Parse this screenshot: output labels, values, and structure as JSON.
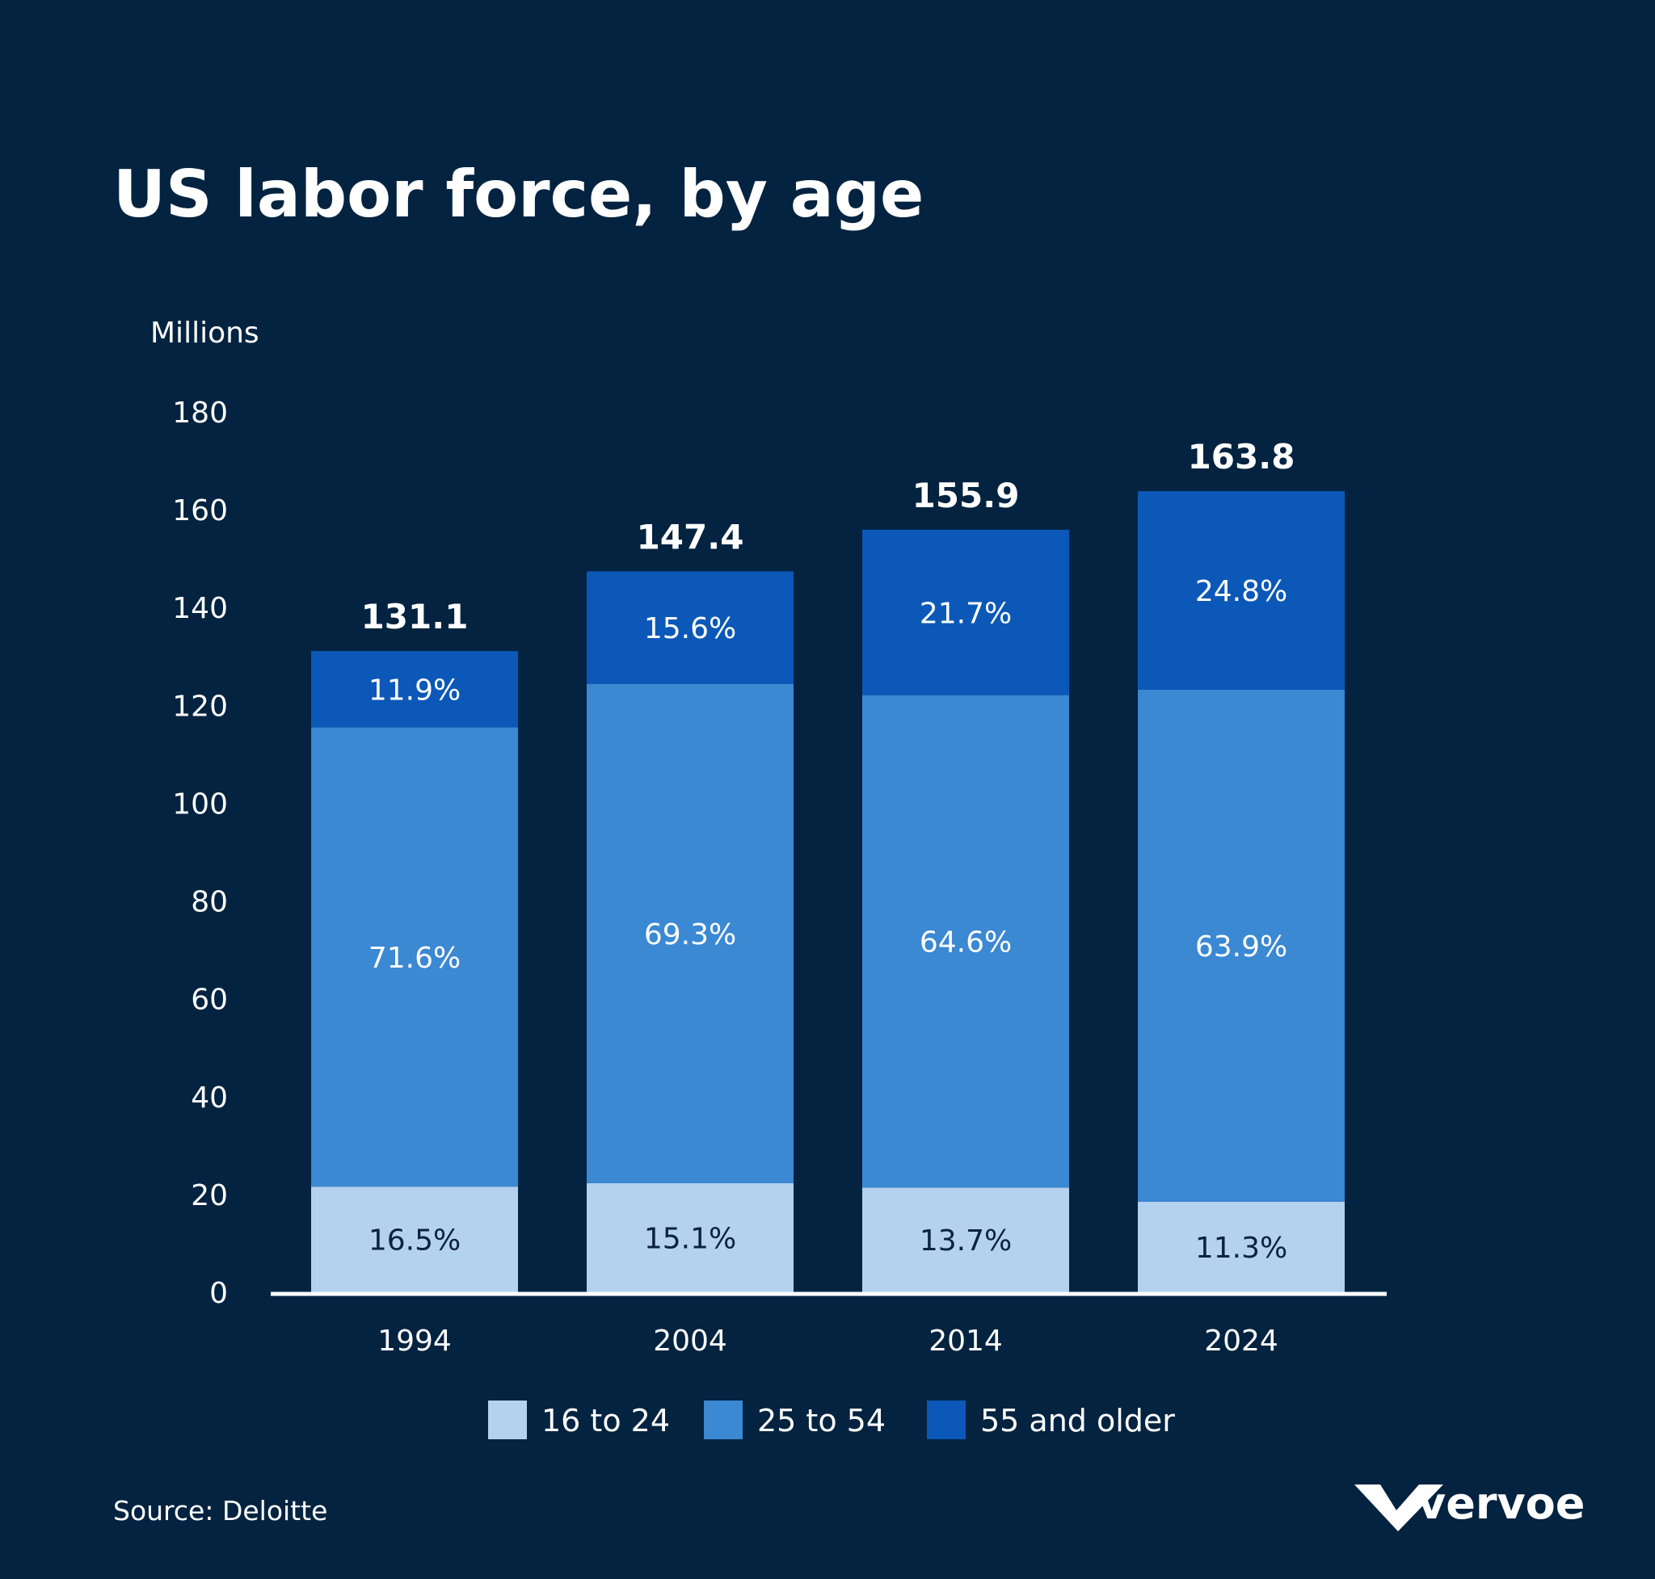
{
  "chart_data": {
    "type": "bar",
    "stacked": true,
    "title": "US labor force, by age",
    "ylabel": "Millions",
    "xlabel": "",
    "ylim": [
      0,
      180
    ],
    "yticks": [
      0,
      20,
      40,
      60,
      80,
      100,
      120,
      140,
      160,
      180
    ],
    "categories": [
      "1994",
      "2004",
      "2014",
      "2024"
    ],
    "totals": [
      131.1,
      147.4,
      155.9,
      163.8
    ],
    "total_labels": [
      "131.1",
      "147.4",
      "155.9",
      "163.8"
    ],
    "series": [
      {
        "name": "16 to 24",
        "color": "#B4D1F0",
        "label_color": "#0B2240",
        "values": [
          21.6,
          22.3,
          21.4,
          18.5
        ],
        "labels": [
          "16.5%",
          "15.1%",
          "13.7%",
          "11.3%"
        ]
      },
      {
        "name": "25 to 54",
        "color": "#3B88D3",
        "label_color": "#FFFFFF",
        "values": [
          93.9,
          102.1,
          100.7,
          104.7
        ],
        "labels": [
          "71.6%",
          "69.3%",
          "64.6%",
          "63.9%"
        ]
      },
      {
        "name": "55 and older",
        "color": "#0B58B8",
        "label_color": "#FFFFFF",
        "values": [
          15.6,
          23.0,
          33.8,
          40.6
        ],
        "labels": [
          "11.9%",
          "15.6%",
          "21.7%",
          "24.8%"
        ]
      }
    ],
    "legend_position": "bottom",
    "grid": false
  },
  "footer": {
    "source": "Source: Deloitte",
    "brand": "vervoe"
  }
}
